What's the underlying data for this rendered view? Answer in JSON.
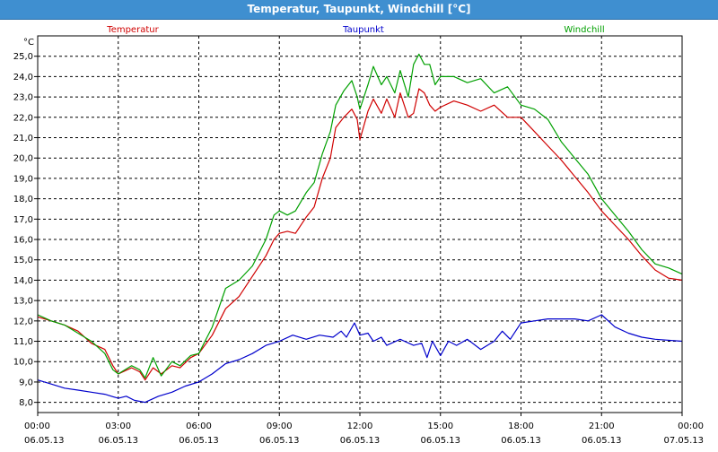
{
  "window": {
    "title": "Temperatur, Taupunkt, Windchill [°C]"
  },
  "chart_data": {
    "type": "line",
    "title": "Temperatur, Taupunkt, Windchill [°C]",
    "ylabel": "°C",
    "ylim": [
      7.5,
      26.0
    ],
    "yticks": [
      "8,0",
      "9,0",
      "10,0",
      "11,0",
      "12,0",
      "13,0",
      "14,0",
      "15,0",
      "16,0",
      "17,0",
      "18,0",
      "19,0",
      "20,0",
      "21,0",
      "22,0",
      "23,0",
      "24,0",
      "25,0"
    ],
    "xlim": [
      0,
      24
    ],
    "xticks": [
      {
        "time": "00:00",
        "date": "06.05.13"
      },
      {
        "time": "03:00",
        "date": "06.05.13"
      },
      {
        "time": "06:00",
        "date": "06.05.13"
      },
      {
        "time": "09:00",
        "date": "06.05.13"
      },
      {
        "time": "12:00",
        "date": "06.05.13"
      },
      {
        "time": "15:00",
        "date": "06.05.13"
      },
      {
        "time": "18:00",
        "date": "06.05.13"
      },
      {
        "time": "21:00",
        "date": "06.05.13"
      },
      {
        "time": "00:00",
        "date": "07.05.13"
      }
    ],
    "grid": true,
    "legend": "top",
    "series": [
      {
        "name": "Temperatur",
        "color": "#d00000",
        "points": [
          [
            0,
            12.2
          ],
          [
            0.5,
            12.0
          ],
          [
            1,
            11.8
          ],
          [
            1.5,
            11.5
          ],
          [
            2,
            10.9
          ],
          [
            2.5,
            10.6
          ],
          [
            2.8,
            9.8
          ],
          [
            3,
            9.4
          ],
          [
            3.5,
            9.7
          ],
          [
            3.8,
            9.5
          ],
          [
            4,
            9.1
          ],
          [
            4.3,
            9.7
          ],
          [
            4.6,
            9.4
          ],
          [
            5,
            9.8
          ],
          [
            5.3,
            9.7
          ],
          [
            5.7,
            10.2
          ],
          [
            6,
            10.4
          ],
          [
            6.5,
            11.3
          ],
          [
            7,
            12.6
          ],
          [
            7.5,
            13.2
          ],
          [
            8,
            14.2
          ],
          [
            8.5,
            15.2
          ],
          [
            8.8,
            16.0
          ],
          [
            9,
            16.3
          ],
          [
            9.3,
            16.4
          ],
          [
            9.6,
            16.3
          ],
          [
            10,
            17.1
          ],
          [
            10.3,
            17.6
          ],
          [
            10.6,
            19.0
          ],
          [
            10.9,
            20.0
          ],
          [
            11.1,
            21.5
          ],
          [
            11.4,
            22.0
          ],
          [
            11.7,
            22.4
          ],
          [
            11.9,
            21.9
          ],
          [
            12,
            20.9
          ],
          [
            12.3,
            22.3
          ],
          [
            12.5,
            22.9
          ],
          [
            12.8,
            22.2
          ],
          [
            13,
            22.9
          ],
          [
            13.3,
            22.0
          ],
          [
            13.5,
            23.2
          ],
          [
            13.8,
            22.0
          ],
          [
            14,
            22.2
          ],
          [
            14.2,
            23.4
          ],
          [
            14.4,
            23.2
          ],
          [
            14.6,
            22.6
          ],
          [
            14.8,
            22.3
          ],
          [
            15,
            22.5
          ],
          [
            15.5,
            22.8
          ],
          [
            16,
            22.6
          ],
          [
            16.5,
            22.3
          ],
          [
            17,
            22.6
          ],
          [
            17.5,
            22.0
          ],
          [
            18,
            22.0
          ],
          [
            18.5,
            21.3
          ],
          [
            19,
            20.6
          ],
          [
            19.5,
            19.9
          ],
          [
            20,
            19.1
          ],
          [
            20.5,
            18.3
          ],
          [
            21,
            17.4
          ],
          [
            21.5,
            16.7
          ],
          [
            22,
            16.0
          ],
          [
            22.5,
            15.2
          ],
          [
            23,
            14.5
          ],
          [
            23.5,
            14.1
          ],
          [
            24,
            14.0
          ]
        ]
      },
      {
        "name": "Taupunkt",
        "color": "#0000cc",
        "points": [
          [
            0,
            9.1
          ],
          [
            0.5,
            8.9
          ],
          [
            1,
            8.7
          ],
          [
            1.5,
            8.6
          ],
          [
            2,
            8.5
          ],
          [
            2.5,
            8.4
          ],
          [
            3,
            8.2
          ],
          [
            3.3,
            8.3
          ],
          [
            3.6,
            8.1
          ],
          [
            4,
            8.0
          ],
          [
            4.5,
            8.3
          ],
          [
            5,
            8.5
          ],
          [
            5.5,
            8.8
          ],
          [
            6,
            9.0
          ],
          [
            6.5,
            9.4
          ],
          [
            7,
            9.9
          ],
          [
            7.5,
            10.1
          ],
          [
            8,
            10.4
          ],
          [
            8.5,
            10.8
          ],
          [
            9,
            11.0
          ],
          [
            9.5,
            11.3
          ],
          [
            10,
            11.1
          ],
          [
            10.5,
            11.3
          ],
          [
            11,
            11.2
          ],
          [
            11.3,
            11.5
          ],
          [
            11.5,
            11.2
          ],
          [
            11.8,
            11.9
          ],
          [
            12,
            11.3
          ],
          [
            12.3,
            11.4
          ],
          [
            12.5,
            11.0
          ],
          [
            12.8,
            11.2
          ],
          [
            13,
            10.8
          ],
          [
            13.5,
            11.1
          ],
          [
            14,
            10.8
          ],
          [
            14.3,
            10.9
          ],
          [
            14.5,
            10.2
          ],
          [
            14.7,
            11.0
          ],
          [
            15,
            10.3
          ],
          [
            15.3,
            11.0
          ],
          [
            15.6,
            10.8
          ],
          [
            16,
            11.1
          ],
          [
            16.5,
            10.6
          ],
          [
            17,
            11.0
          ],
          [
            17.3,
            11.5
          ],
          [
            17.6,
            11.1
          ],
          [
            18,
            11.9
          ],
          [
            18.5,
            12.0
          ],
          [
            19,
            12.1
          ],
          [
            20,
            12.1
          ],
          [
            20.5,
            12.0
          ],
          [
            21,
            12.3
          ],
          [
            21.5,
            11.7
          ],
          [
            22,
            11.4
          ],
          [
            22.5,
            11.2
          ],
          [
            23,
            11.1
          ],
          [
            24,
            11.0
          ]
        ]
      },
      {
        "name": "Windchill",
        "color": "#00a000",
        "points": [
          [
            0,
            12.3
          ],
          [
            0.5,
            12.0
          ],
          [
            1,
            11.8
          ],
          [
            1.5,
            11.4
          ],
          [
            2,
            11.0
          ],
          [
            2.5,
            10.4
          ],
          [
            2.8,
            9.6
          ],
          [
            3,
            9.4
          ],
          [
            3.5,
            9.8
          ],
          [
            3.8,
            9.6
          ],
          [
            4,
            9.2
          ],
          [
            4.3,
            10.2
          ],
          [
            4.6,
            9.3
          ],
          [
            5,
            10.0
          ],
          [
            5.3,
            9.8
          ],
          [
            5.7,
            10.3
          ],
          [
            6,
            10.4
          ],
          [
            6.5,
            11.7
          ],
          [
            7,
            13.6
          ],
          [
            7.5,
            14.0
          ],
          [
            8,
            14.7
          ],
          [
            8.5,
            16.0
          ],
          [
            8.8,
            17.2
          ],
          [
            9,
            17.4
          ],
          [
            9.3,
            17.2
          ],
          [
            9.6,
            17.4
          ],
          [
            10,
            18.3
          ],
          [
            10.3,
            18.8
          ],
          [
            10.6,
            20.2
          ],
          [
            10.9,
            21.3
          ],
          [
            11.1,
            22.6
          ],
          [
            11.4,
            23.3
          ],
          [
            11.7,
            23.8
          ],
          [
            11.9,
            23.0
          ],
          [
            12,
            22.4
          ],
          [
            12.3,
            23.6
          ],
          [
            12.5,
            24.5
          ],
          [
            12.8,
            23.6
          ],
          [
            13,
            24.0
          ],
          [
            13.3,
            23.2
          ],
          [
            13.5,
            24.3
          ],
          [
            13.8,
            23.0
          ],
          [
            14,
            24.6
          ],
          [
            14.2,
            25.1
          ],
          [
            14.4,
            24.6
          ],
          [
            14.6,
            24.6
          ],
          [
            14.8,
            23.6
          ],
          [
            15,
            24.0
          ],
          [
            15.5,
            24.0
          ],
          [
            16,
            23.7
          ],
          [
            16.5,
            23.9
          ],
          [
            17,
            23.2
          ],
          [
            17.5,
            23.5
          ],
          [
            18,
            22.6
          ],
          [
            18.5,
            22.4
          ],
          [
            19,
            21.9
          ],
          [
            19.5,
            20.8
          ],
          [
            20,
            20.0
          ],
          [
            20.5,
            19.2
          ],
          [
            21,
            18.0
          ],
          [
            21.5,
            17.2
          ],
          [
            22,
            16.4
          ],
          [
            22.5,
            15.5
          ],
          [
            23,
            14.8
          ],
          [
            23.5,
            14.6
          ],
          [
            24,
            14.3
          ]
        ]
      }
    ]
  }
}
